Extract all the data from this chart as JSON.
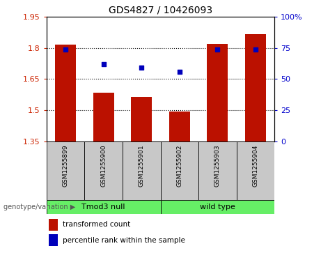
{
  "title": "GDS4827 / 10426093",
  "samples": [
    "GSM1255899",
    "GSM1255900",
    "GSM1255901",
    "GSM1255902",
    "GSM1255903",
    "GSM1255904"
  ],
  "bar_values": [
    1.815,
    1.585,
    1.565,
    1.495,
    1.82,
    1.865
  ],
  "percentile_values": [
    73.5,
    62,
    59,
    56,
    73.5,
    73.5
  ],
  "ymin": 1.35,
  "ymax": 1.95,
  "yticks_left": [
    1.35,
    1.5,
    1.65,
    1.8,
    1.95
  ],
  "yticks_right": [
    0,
    25,
    50,
    75,
    100
  ],
  "bar_color": "#bb1100",
  "dot_color": "#0000bb",
  "group_bg_color": "#c8c8c8",
  "green_color": "#66ee66",
  "group_label_row": "genotype/variation",
  "groups": [
    {
      "label": "Tmod3 null",
      "indices": [
        0,
        1,
        2
      ]
    },
    {
      "label": "wild type",
      "indices": [
        3,
        4,
        5
      ]
    }
  ],
  "legend_bar_label": "transformed count",
  "legend_dot_label": "percentile rank within the sample",
  "axis_label_color_left": "#cc2200",
  "axis_label_color_right": "#0000cc",
  "bar_width": 0.55
}
